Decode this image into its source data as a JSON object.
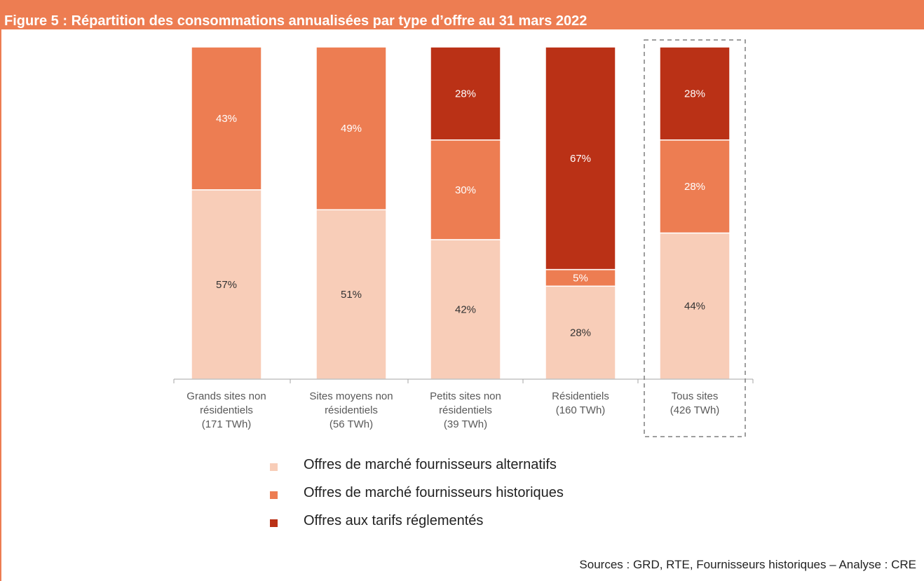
{
  "title": "Figure 5 : Répartition des consommations annualisées par type d’offre au 31 mars 2022",
  "source": "Sources : GRD, RTE, Fournisseurs historiques – Analyse : CRE",
  "colors": {
    "header": "#ED7D52",
    "alternatifs": "#F8CDB8",
    "historiques": "#ED7D52",
    "reglementes": "#BA3116",
    "axis": "#A6A6A6",
    "highlight_box": "#7F7F7F"
  },
  "chart_data": {
    "type": "bar",
    "stacked": true,
    "percent": true,
    "ylim": [
      0,
      100
    ],
    "grid": false,
    "legend_position": "bottom",
    "highlighted_category": "Tous sites",
    "categories": [
      [
        "Grands sites non",
        "résidentiels",
        "(171 TWh)"
      ],
      [
        "Sites moyens non",
        "résidentiels",
        "(56 TWh)"
      ],
      [
        "Petits sites non",
        "résidentiels",
        "(39 TWh)"
      ],
      [
        "Résidentiels",
        "(160 TWh)"
      ],
      [
        "Tous sites",
        "(426 TWh)"
      ]
    ],
    "series": [
      {
        "name": "Offres de marché fournisseurs alternatifs",
        "color": "#F8CDB8",
        "values": [
          57,
          51,
          42,
          28,
          44
        ]
      },
      {
        "name": "Offres de marché fournisseurs historiques",
        "color": "#ED7D52",
        "values": [
          43,
          49,
          30,
          5,
          28
        ]
      },
      {
        "name": "Offres aux tarifs réglementés",
        "color": "#BA3116",
        "values": [
          0,
          0,
          28,
          67,
          28
        ]
      }
    ]
  }
}
